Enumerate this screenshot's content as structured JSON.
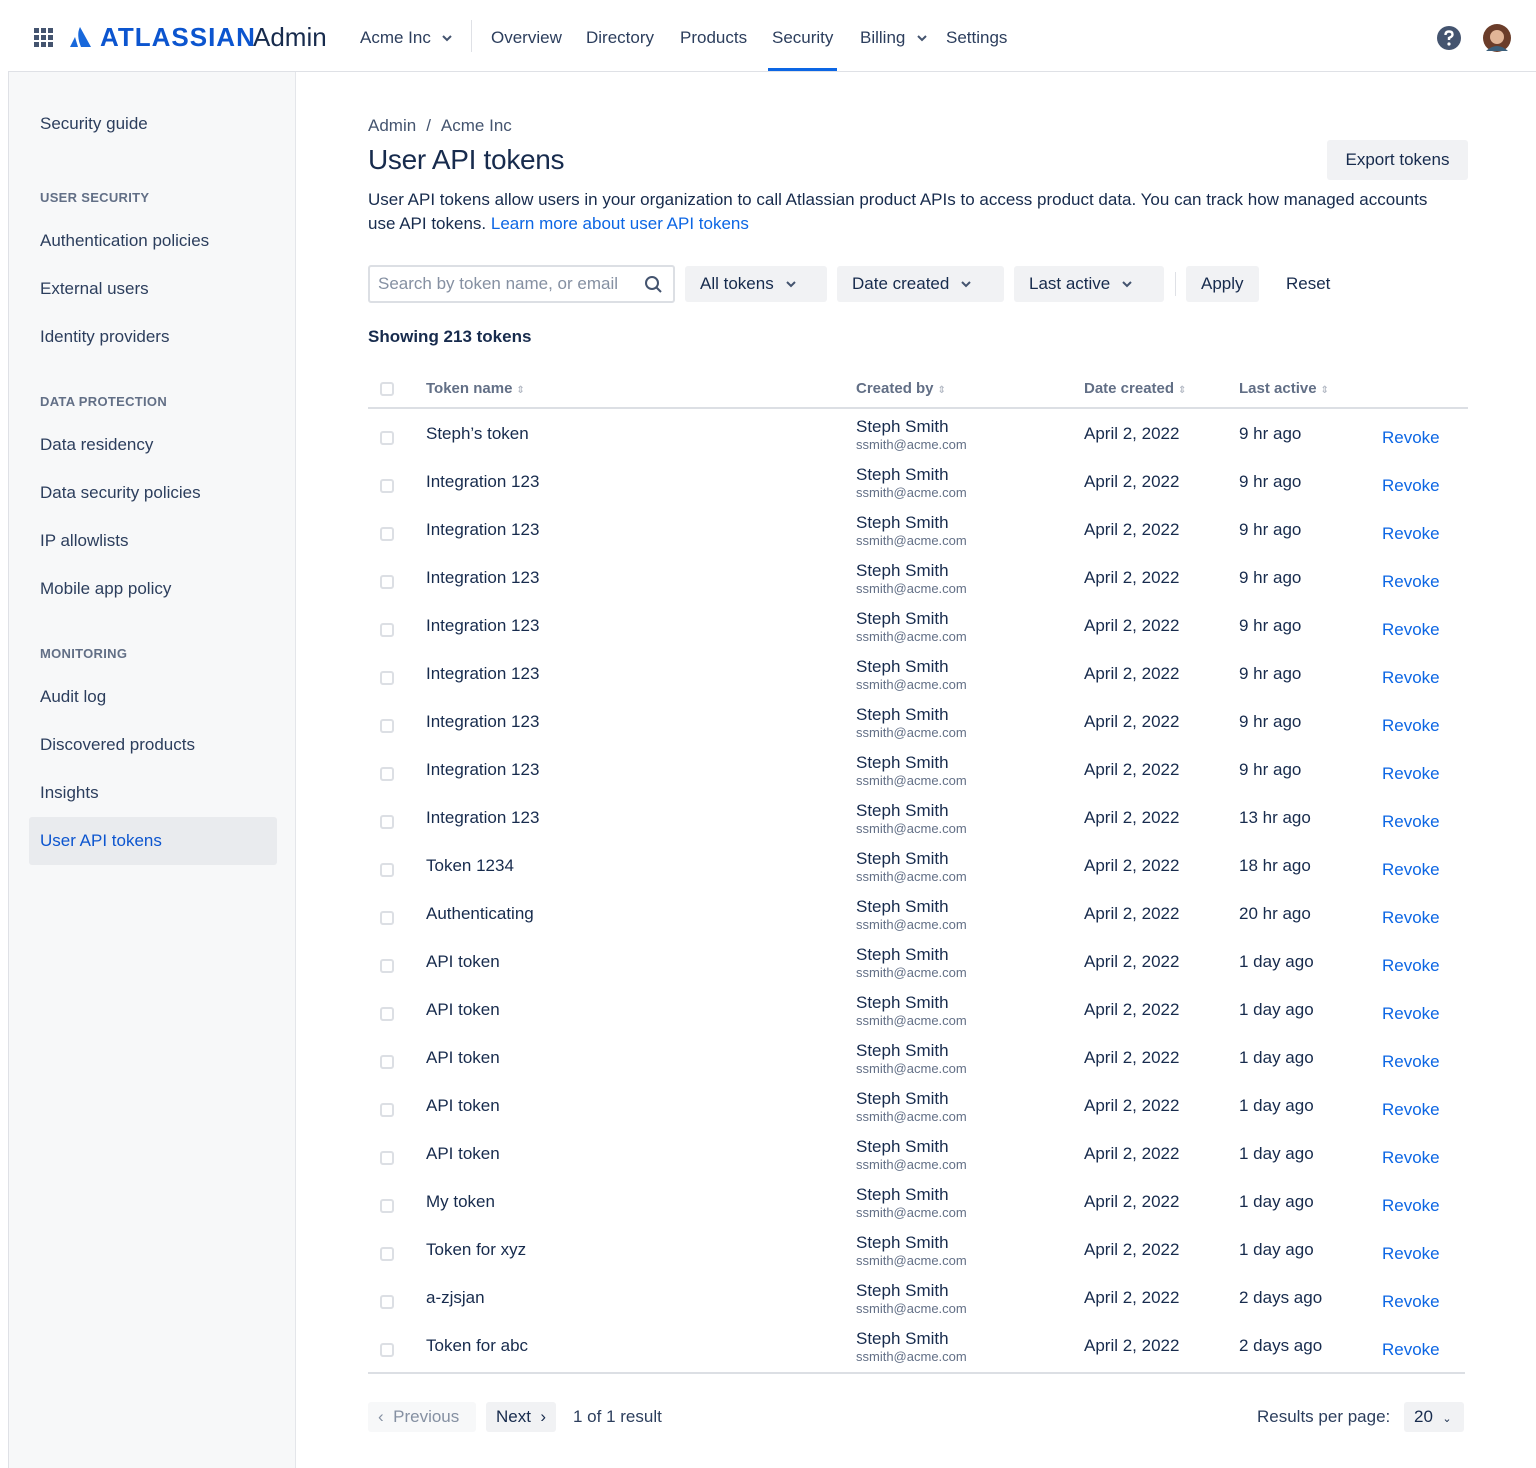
{
  "nav": {
    "logo": "ATLASSIAN",
    "product": "Admin",
    "org": "Acme Inc",
    "items": [
      "Overview",
      "Directory",
      "Products",
      "Security",
      "Billing",
      "Settings"
    ],
    "active": "Security"
  },
  "sidebar": {
    "top": "Security guide",
    "sections": [
      {
        "heading": "USER SECURITY",
        "items": [
          "Authentication policies",
          "External users",
          "Identity providers"
        ]
      },
      {
        "heading": "DATA PROTECTION",
        "items": [
          "Data residency",
          "Data security policies",
          "IP allowlists",
          "Mobile app policy"
        ]
      },
      {
        "heading": "MONITORING",
        "items": [
          "Audit log",
          "Discovered products",
          "Insights",
          "User API tokens"
        ]
      }
    ],
    "active": "User API tokens"
  },
  "breadcrumb": [
    "Admin",
    "Acme Inc"
  ],
  "title": "User API tokens",
  "export_button": "Export tokens",
  "description": "User API tokens allow users in your organization to call Atlassian product APIs to access product data. You can track how managed accounts use API tokens.",
  "learn_more": "Learn more about user API tokens",
  "filters": {
    "search_placeholder": "Search by token name, or email",
    "dropdowns": [
      "All tokens",
      "Date created",
      "Last active"
    ],
    "apply": "Apply",
    "reset": "Reset"
  },
  "count": "Showing 213 tokens",
  "table": {
    "columns": [
      "Token name",
      "Created by",
      "Date created",
      "Last active"
    ],
    "rows": [
      {
        "name": "Steph’s token",
        "created_by": "Steph Smith",
        "email": "ssmith@acme.com",
        "date_created": "April 2, 2022",
        "last_active": "9 hr ago",
        "action": "Revoke"
      },
      {
        "name": "Integration 123",
        "created_by": "Steph Smith",
        "email": "ssmith@acme.com",
        "date_created": "April 2, 2022",
        "last_active": "9 hr ago",
        "action": "Revoke"
      },
      {
        "name": "Integration 123",
        "created_by": "Steph Smith",
        "email": "ssmith@acme.com",
        "date_created": "April 2, 2022",
        "last_active": "9 hr ago",
        "action": "Revoke"
      },
      {
        "name": "Integration 123",
        "created_by": "Steph Smith",
        "email": "ssmith@acme.com",
        "date_created": "April 2, 2022",
        "last_active": "9 hr ago",
        "action": "Revoke"
      },
      {
        "name": "Integration 123",
        "created_by": "Steph Smith",
        "email": "ssmith@acme.com",
        "date_created": "April 2, 2022",
        "last_active": "9 hr ago",
        "action": "Revoke"
      },
      {
        "name": "Integration 123",
        "created_by": "Steph Smith",
        "email": "ssmith@acme.com",
        "date_created": "April 2, 2022",
        "last_active": "9 hr ago",
        "action": "Revoke"
      },
      {
        "name": "Integration 123",
        "created_by": "Steph Smith",
        "email": "ssmith@acme.com",
        "date_created": "April 2, 2022",
        "last_active": "9 hr ago",
        "action": "Revoke"
      },
      {
        "name": "Integration 123",
        "created_by": "Steph Smith",
        "email": "ssmith@acme.com",
        "date_created": "April 2, 2022",
        "last_active": "9 hr ago",
        "action": "Revoke"
      },
      {
        "name": "Integration 123",
        "created_by": "Steph Smith",
        "email": "ssmith@acme.com",
        "date_created": "April 2, 2022",
        "last_active": "13 hr ago",
        "action": "Revoke"
      },
      {
        "name": "Token 1234",
        "created_by": "Steph Smith",
        "email": "ssmith@acme.com",
        "date_created": "April 2, 2022",
        "last_active": "18 hr ago",
        "action": "Revoke"
      },
      {
        "name": "Authenticating",
        "created_by": "Steph Smith",
        "email": "ssmith@acme.com",
        "date_created": "April 2, 2022",
        "last_active": "20 hr ago",
        "action": "Revoke"
      },
      {
        "name": "API token",
        "created_by": "Steph Smith",
        "email": "ssmith@acme.com",
        "date_created": "April 2, 2022",
        "last_active": "1 day ago",
        "action": "Revoke"
      },
      {
        "name": "API token",
        "created_by": "Steph Smith",
        "email": "ssmith@acme.com",
        "date_created": "April 2, 2022",
        "last_active": "1 day ago",
        "action": "Revoke"
      },
      {
        "name": "API token",
        "created_by": "Steph Smith",
        "email": "ssmith@acme.com",
        "date_created": "April 2, 2022",
        "last_active": "1 day ago",
        "action": "Revoke"
      },
      {
        "name": "API token",
        "created_by": "Steph Smith",
        "email": "ssmith@acme.com",
        "date_created": "April 2, 2022",
        "last_active": "1 day ago",
        "action": "Revoke"
      },
      {
        "name": "API token",
        "created_by": "Steph Smith",
        "email": "ssmith@acme.com",
        "date_created": "April 2, 2022",
        "last_active": "1 day ago",
        "action": "Revoke"
      },
      {
        "name": "My token",
        "created_by": "Steph Smith",
        "email": "ssmith@acme.com",
        "date_created": "April 2, 2022",
        "last_active": "1 day ago",
        "action": "Revoke"
      },
      {
        "name": "Token for xyz",
        "created_by": "Steph Smith",
        "email": "ssmith@acme.com",
        "date_created": "April 2, 2022",
        "last_active": "1 day ago",
        "action": "Revoke"
      },
      {
        "name": "a-zjsjan",
        "created_by": "Steph Smith",
        "email": "ssmith@acme.com",
        "date_created": "April 2, 2022",
        "last_active": "2 days ago",
        "action": "Revoke"
      },
      {
        "name": "Token for abc",
        "created_by": "Steph Smith",
        "email": "ssmith@acme.com",
        "date_created": "April 2, 2022",
        "last_active": "2 days ago",
        "action": "Revoke"
      }
    ]
  },
  "pagination": {
    "previous": "Previous",
    "next": "Next",
    "summary": "1 of 1 result",
    "per_page_label": "Results per page:",
    "per_page": "20"
  }
}
